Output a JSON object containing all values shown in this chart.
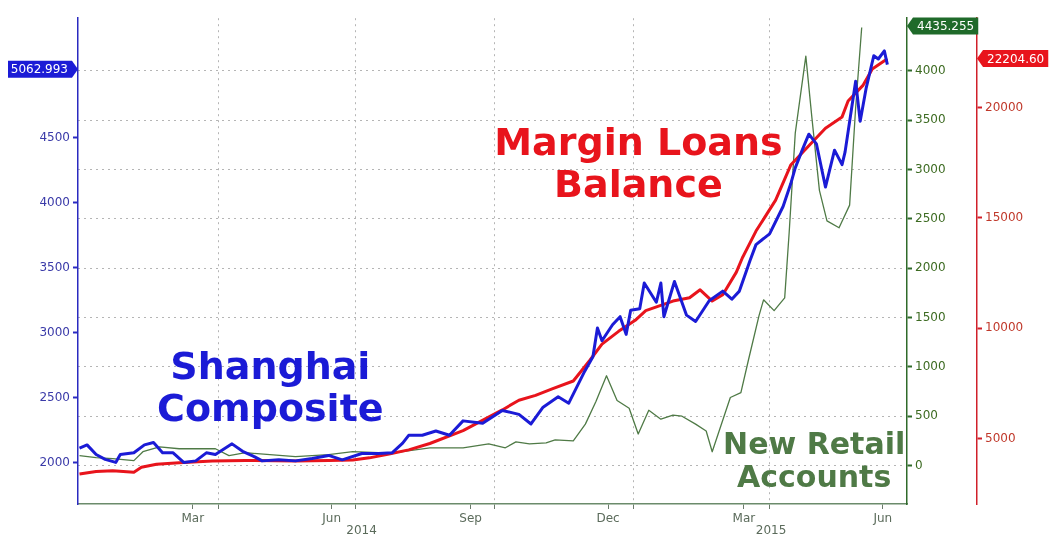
{
  "chart_data": {
    "type": "line",
    "xlim": [
      "2013-12-29",
      "2015-07-01"
    ],
    "xticks": [
      {
        "value": "2014-03-15",
        "label": "Mar"
      },
      {
        "value": "2014-04-01",
        "label": null
      },
      {
        "value": "2014-06-15",
        "label": "Jun"
      },
      {
        "value": "2014-07-01",
        "label": null
      },
      {
        "value": "2014-09-15",
        "label": "Sep"
      },
      {
        "value": "2014-10-01",
        "label": null
      },
      {
        "value": "2014-12-15",
        "label": "Dec"
      },
      {
        "value": "2015-01-01",
        "label": null
      },
      {
        "value": "2015-03-15",
        "label": "Mar"
      },
      {
        "value": "2015-04-01",
        "label": null
      },
      {
        "value": "2015-06-15",
        "label": "Jun"
      }
    ],
    "ylim": [
      1680,
      5420
    ],
    "yticks": [
      2000,
      2500,
      3000,
      3500,
      4000,
      4500
    ],
    "y2lim": [
      -390,
      4535
    ],
    "y2ticks": [
      0,
      500,
      1000,
      1500,
      2000,
      2500,
      3000,
      3500,
      4000
    ],
    "y3lim": [
      2040,
      24040
    ],
    "y3ticks": [
      5000,
      10000,
      15000,
      20000
    ],
    "grid": true,
    "legend": false,
    "annotations": [
      "2014",
      "2015",
      "5062.993",
      "4435.255",
      "22204.60"
    ],
    "series": [
      {
        "name": "Shanghai Composite",
        "color": "#1b1bd6",
        "axis": "y",
        "x": [
          "2013-12-30",
          "2014-01-04",
          "2014-01-10",
          "2014-01-16",
          "2014-01-23",
          "2014-01-26",
          "2014-02-04",
          "2014-02-11",
          "2014-02-17",
          "2014-02-23",
          "2014-03-02",
          "2014-03-09",
          "2014-03-17",
          "2014-03-24",
          "2014-03-30",
          "2014-04-10",
          "2014-04-17",
          "2014-04-24",
          "2014-04-30",
          "2014-05-11",
          "2014-05-22",
          "2014-06-02",
          "2014-06-13",
          "2014-06-22",
          "2014-07-05",
          "2014-07-16",
          "2014-07-25",
          "2014-08-01",
          "2014-08-05",
          "2014-08-14",
          "2014-08-23",
          "2014-09-01",
          "2014-09-10",
          "2014-09-23",
          "2014-10-06",
          "2014-10-17",
          "2014-10-25",
          "2014-11-02",
          "2014-11-12",
          "2014-11-19",
          "2014-11-29",
          "2014-12-05",
          "2014-12-08",
          "2014-12-11",
          "2014-12-18",
          "2014-12-23",
          "2014-12-27",
          "2014-12-30",
          "2015-01-05",
          "2015-01-08",
          "2015-01-16",
          "2015-01-19",
          "2015-01-21",
          "2015-01-28",
          "2015-02-05",
          "2015-02-11",
          "2015-02-20",
          "2015-03-01",
          "2015-03-07",
          "2015-03-12",
          "2015-03-19",
          "2015-03-23",
          "2015-04-01",
          "2015-04-10",
          "2015-04-15",
          "2015-04-18",
          "2015-04-23",
          "2015-04-27",
          "2015-05-02",
          "2015-05-08",
          "2015-05-14",
          "2015-05-19",
          "2015-05-21",
          "2015-05-28",
          "2015-05-31",
          "2015-06-04",
          "2015-06-09",
          "2015-06-12",
          "2015-06-16",
          "2015-06-18"
        ],
        "values": [
          2111,
          2135,
          2061,
          2024,
          2000,
          2061,
          2074,
          2135,
          2153,
          2074,
          2074,
          2000,
          2012,
          2074,
          2061,
          2143,
          2086,
          2049,
          2012,
          2020,
          2012,
          2030,
          2054,
          2020,
          2069,
          2069,
          2074,
          2148,
          2209,
          2209,
          2242,
          2209,
          2320,
          2301,
          2400,
          2370,
          2296,
          2425,
          2505,
          2456,
          2690,
          2814,
          3035,
          2937,
          3060,
          3122,
          2986,
          3171,
          3183,
          3381,
          3233,
          3381,
          3122,
          3393,
          3134,
          3085,
          3245,
          3319,
          3257,
          3319,
          3553,
          3677,
          3760,
          3972,
          4145,
          4268,
          4416,
          4527,
          4453,
          4120,
          4404,
          4293,
          4391,
          4934,
          4626,
          4884,
          5131,
          5106,
          5168,
          5063
        ]
      },
      {
        "name": "Margin Loans Balance",
        "color": "#e8141c",
        "axis": "y3",
        "x": [
          "2013-12-30",
          "2014-01-10",
          "2014-01-21",
          "2014-02-04",
          "2014-02-09",
          "2014-02-19",
          "2014-03-06",
          "2014-03-28",
          "2014-04-19",
          "2014-05-22",
          "2014-06-13",
          "2014-06-29",
          "2014-07-10",
          "2014-07-23",
          "2014-08-05",
          "2014-08-19",
          "2014-09-10",
          "2014-10-06",
          "2014-10-17",
          "2014-10-28",
          "2014-11-08",
          "2014-11-22",
          "2014-12-03",
          "2014-12-11",
          "2014-12-22",
          "2015-01-02",
          "2015-01-09",
          "2015-01-18",
          "2015-01-27",
          "2015-02-07",
          "2015-02-14",
          "2015-02-22",
          "2015-03-01",
          "2015-03-10",
          "2015-03-14",
          "2015-03-23",
          "2015-04-05",
          "2015-04-15",
          "2015-04-27",
          "2015-05-08",
          "2015-05-19",
          "2015-05-23",
          "2015-06-02",
          "2015-06-08",
          "2015-06-18"
        ],
        "values": [
          3400,
          3510,
          3550,
          3480,
          3700,
          3840,
          3910,
          3990,
          4010,
          3990,
          4010,
          4030,
          4130,
          4300,
          4490,
          4780,
          5360,
          6300,
          6740,
          6960,
          7250,
          7610,
          8550,
          9280,
          9860,
          10360,
          10800,
          11010,
          11230,
          11380,
          11740,
          11230,
          11520,
          12540,
          13190,
          14400,
          15800,
          17390,
          18260,
          19060,
          19570,
          20290,
          21010,
          21740,
          22200
        ]
      },
      {
        "name": "New Retail Accounts",
        "color": "#4f7a46",
        "axis": "y2",
        "x": [
          "2013-12-30",
          "2014-01-10",
          "2014-01-21",
          "2014-02-04",
          "2014-02-10",
          "2014-02-21",
          "2014-03-06",
          "2014-03-30",
          "2014-04-08",
          "2014-04-19",
          "2014-05-22",
          "2014-06-13",
          "2014-06-29",
          "2014-07-16",
          "2014-07-27",
          "2014-08-19",
          "2014-09-10",
          "2014-09-27",
          "2014-10-08",
          "2014-10-15",
          "2014-10-24",
          "2014-11-04",
          "2014-11-10",
          "2014-11-22",
          "2014-11-30",
          "2014-12-07",
          "2014-12-14",
          "2014-12-21",
          "2014-12-29",
          "2015-01-04",
          "2015-01-11",
          "2015-01-19",
          "2015-01-27",
          "2015-02-02",
          "2015-02-11",
          "2015-02-18",
          "2015-02-22",
          "2015-03-06",
          "2015-03-13",
          "2015-03-18",
          "2015-03-25",
          "2015-03-28",
          "2015-04-04",
          "2015-04-11",
          "2015-04-14",
          "2015-04-18",
          "2015-04-25",
          "2015-04-29",
          "2015-05-04",
          "2015-05-09",
          "2015-05-17",
          "2015-05-24",
          "2015-05-28",
          "2015-06-01"
        ],
        "values": [
          100,
          80,
          70,
          50,
          140,
          190,
          170,
          170,
          100,
          130,
          90,
          110,
          140,
          130,
          130,
          180,
          180,
          220,
          180,
          240,
          220,
          230,
          260,
          250,
          420,
          650,
          910,
          660,
          580,
          320,
          560,
          470,
          510,
          500,
          420,
          350,
          140,
          690,
          740,
          1070,
          1520,
          1680,
          1570,
          1700,
          2370,
          3370,
          4150,
          3530,
          2790,
          2480,
          2410,
          2640,
          3630,
          4440
        ]
      }
    ]
  }
}
